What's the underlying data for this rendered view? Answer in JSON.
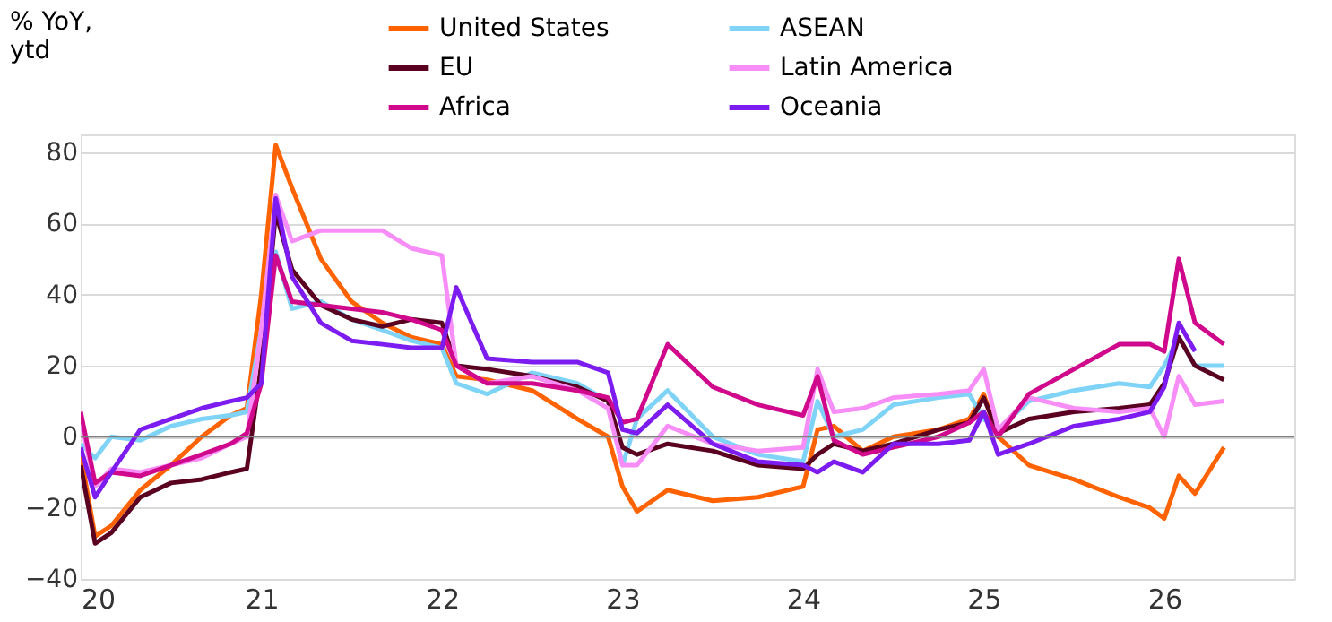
{
  "chart_data": {
    "type": "line",
    "ylabel": "% YoY, ytd",
    "x": [
      2020.0,
      2020.08,
      2020.17,
      2020.33,
      2020.5,
      2020.67,
      2020.83,
      2020.92,
      2021.0,
      2021.08,
      2021.17,
      2021.33,
      2021.5,
      2021.67,
      2021.83,
      2022.0,
      2022.08,
      2022.25,
      2022.5,
      2022.75,
      2022.92,
      2023.0,
      2023.08,
      2023.25,
      2023.5,
      2023.75,
      2024.0,
      2024.08,
      2024.17,
      2024.33,
      2024.5,
      2024.75,
      2024.92,
      2025.0,
      2025.08,
      2025.25,
      2025.5,
      2025.75,
      2025.92,
      2026.0,
      2026.08,
      2026.17,
      2026.33
    ],
    "series": [
      {
        "name": "United States",
        "color": "#ff6200",
        "values": [
          -5,
          -28,
          -25,
          -15,
          -8,
          0,
          6,
          8,
          40,
          82,
          70,
          50,
          38,
          32,
          28,
          26,
          17,
          16,
          13,
          5,
          0,
          -14,
          -21,
          -15,
          -18,
          -17,
          -14,
          2,
          3,
          -4,
          0,
          2,
          5,
          12,
          0,
          -8,
          -12,
          -17,
          -20,
          -23,
          -11,
          -16,
          -3
        ]
      },
      {
        "name": "ASEAN",
        "color": "#7fd3f7",
        "values": [
          -2,
          -6,
          0,
          -1,
          3,
          5,
          6,
          7,
          30,
          52,
          36,
          38,
          33,
          30,
          27,
          25,
          15,
          12,
          18,
          15,
          10,
          -8,
          5,
          13,
          0,
          -5,
          -7,
          10,
          0,
          2,
          9,
          11,
          12,
          5,
          2,
          10,
          13,
          15,
          14,
          20,
          28,
          20,
          20
        ]
      },
      {
        "name": "EU",
        "color": "#5a0020",
        "values": [
          -8,
          -30,
          -27,
          -17,
          -13,
          -12,
          -10,
          -9,
          20,
          63,
          47,
          37,
          33,
          31,
          33,
          32,
          20,
          19,
          17,
          14,
          10,
          -3,
          -5,
          -2,
          -4,
          -8,
          -9,
          -5,
          -2,
          -4,
          -2,
          2,
          4,
          11,
          1,
          5,
          7,
          8,
          9,
          15,
          28,
          20,
          16
        ]
      },
      {
        "name": "Latin America",
        "color": "#f78ef7",
        "values": [
          5,
          -14,
          -9,
          -10,
          -8,
          -6,
          -2,
          0,
          30,
          68,
          55,
          58,
          58,
          58,
          53,
          51,
          20,
          15,
          17,
          13,
          8,
          -8,
          -8,
          3,
          -2,
          -4,
          -3,
          19,
          7,
          8,
          11,
          12,
          13,
          19,
          2,
          11,
          8,
          7,
          8,
          0,
          17,
          9,
          10
        ]
      },
      {
        "name": "Africa",
        "color": "#d0088c",
        "values": [
          7,
          -13,
          -10,
          -11,
          -8,
          -5,
          -2,
          1,
          15,
          51,
          38,
          37,
          36,
          35,
          33,
          30,
          20,
          15,
          15,
          13,
          11,
          4,
          5,
          26,
          14,
          9,
          6,
          17,
          -1,
          -5,
          -3,
          0,
          4,
          7,
          0,
          12,
          19,
          26,
          26,
          24,
          50,
          32,
          26
        ]
      },
      {
        "name": "Oceania",
        "color": "#7d1cf0",
        "values": [
          -3,
          -17,
          -10,
          2,
          5,
          8,
          10,
          11,
          15,
          67,
          45,
          32,
          27,
          26,
          25,
          25,
          42,
          22,
          21,
          21,
          18,
          2,
          1,
          9,
          -2,
          -7,
          -8,
          -10,
          -7,
          -10,
          -2,
          -2,
          -1,
          7,
          -5,
          -2,
          3,
          5,
          7,
          14,
          32,
          24,
          null
        ]
      }
    ],
    "xlim": [
      2020,
      2026.72
    ],
    "xticks": [
      {
        "value": 2020,
        "label": "20"
      },
      {
        "value": 2021,
        "label": "21"
      },
      {
        "value": 2022,
        "label": "22"
      },
      {
        "value": 2023,
        "label": "23"
      },
      {
        "value": 2024,
        "label": "24"
      },
      {
        "value": 2025,
        "label": "25"
      },
      {
        "value": 2026,
        "label": "26"
      }
    ],
    "ylim": [
      -40,
      85
    ],
    "yticks": [
      -40,
      -20,
      0,
      20,
      40,
      60,
      80
    ],
    "ref_lines": [
      {
        "axis": "y",
        "value": 0,
        "color": "#808080"
      }
    ],
    "grid": "y",
    "legend": "top",
    "line_style": "solid",
    "marker": "none"
  }
}
